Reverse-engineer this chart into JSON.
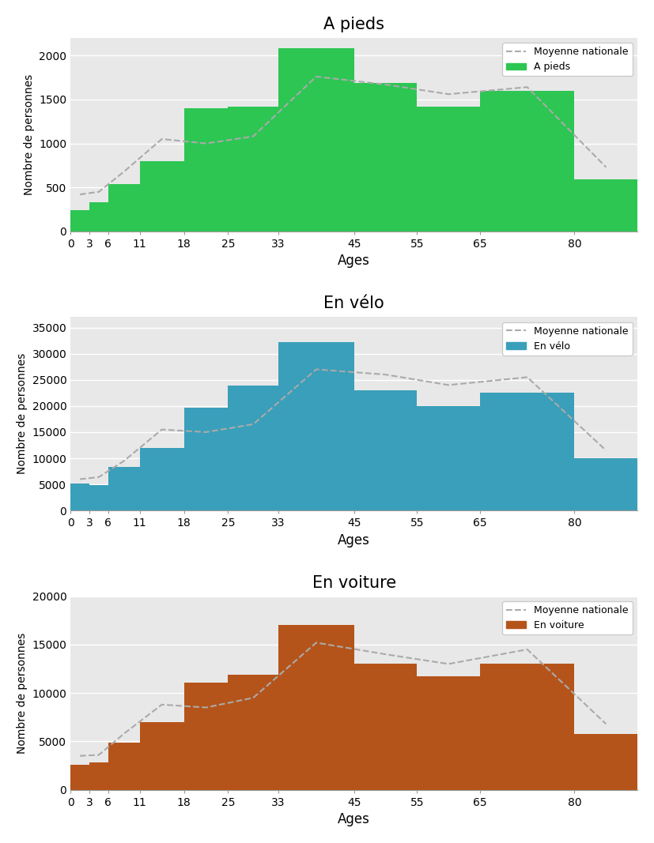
{
  "charts": [
    {
      "title": "A pieds",
      "bar_color": "#2dc653",
      "legend_label": "A pieds",
      "bar_values": [
        240,
        330,
        540,
        800,
        1400,
        1420,
        2080,
        1690,
        1420,
        1600,
        590
      ],
      "mean_values": [
        420,
        450,
        680,
        1050,
        1000,
        1080,
        1760,
        1670,
        1560,
        1640,
        730
      ],
      "ylim": [
        0,
        2200
      ],
      "yticks": [
        0,
        500,
        1000,
        1500,
        2000
      ]
    },
    {
      "title": "En vélo",
      "bar_color": "#3a9fba",
      "legend_label": "En vélo",
      "bar_values": [
        5100,
        4900,
        8300,
        12000,
        19700,
        23900,
        32200,
        23000,
        20000,
        22500,
        10000
      ],
      "mean_values": [
        6000,
        6400,
        9500,
        15500,
        15000,
        16500,
        27000,
        26000,
        24000,
        25500,
        11500
      ],
      "ylim": [
        0,
        37000
      ],
      "yticks": [
        0,
        5000,
        10000,
        15000,
        20000,
        25000,
        30000,
        35000
      ]
    },
    {
      "title": "En voiture",
      "bar_color": "#b5541a",
      "legend_label": "En voiture",
      "bar_values": [
        2600,
        2800,
        4900,
        7000,
        11100,
        11900,
        17000,
        13000,
        11700,
        13000,
        5800
      ],
      "mean_values": [
        3500,
        3600,
        5800,
        8800,
        8500,
        9500,
        15200,
        14000,
        13000,
        14500,
        6800
      ],
      "ylim": [
        0,
        20000
      ],
      "yticks": [
        0,
        5000,
        10000,
        15000,
        20000
      ]
    }
  ],
  "age_boundaries": [
    0,
    3,
    6,
    11,
    18,
    25,
    33,
    45,
    55,
    65,
    80,
    90
  ],
  "x_ticks": [
    0,
    3,
    6,
    11,
    18,
    25,
    33,
    45,
    55,
    65,
    80
  ],
  "xlabel": "Ages",
  "ylabel": "Nombre de personnes",
  "bg_color": "#e8e8e8",
  "mean_line_color": "#aaaaaa",
  "mean_line_style": "--",
  "mean_legend_label": "Moyenne nationale"
}
